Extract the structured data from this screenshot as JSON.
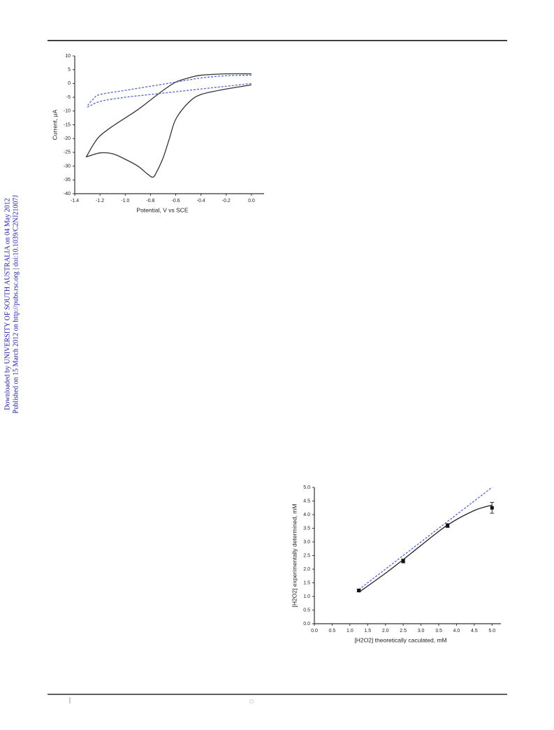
{
  "sidebar": {
    "line1": "Downloaded by UNIVERSITY OF SOUTH AUSTRALIA on 04 May 2012",
    "line2": "Published on 15 March 2012 on http://pubs.rsc.org | doi:10.1039/C2NJ21007J"
  },
  "chart_data": [
    {
      "type": "line",
      "x_label": "Potential, V vs SCE",
      "y_label": "Current, μA",
      "xlim": [
        -1.4,
        0.1
      ],
      "ylim": [
        -40,
        10
      ],
      "xticks": [
        -1.4,
        -1.2,
        {
          "value": -1,
          "label": "-1.0"
        },
        -0.8,
        -0.6,
        -0.4,
        -0.2,
        {
          "value": 0,
          "label": "0.0"
        }
      ],
      "yticks": [
        10,
        5,
        0,
        -5,
        -10,
        -15,
        -20,
        -25,
        -30,
        -35,
        -40
      ],
      "series": [
        {
          "color": "#333333",
          "dashed": false,
          "x": [
            0,
            -0.2,
            -0.4,
            -0.5,
            -0.6,
            -0.65,
            -0.7,
            -0.75,
            -0.78,
            -0.82,
            -0.9,
            -1.0,
            -1.1,
            -1.2,
            -1.3,
            -1.3,
            -1.25,
            -1.2,
            -1.1,
            -1.0,
            -0.9,
            -0.8,
            -0.7,
            -0.6,
            -0.5,
            -0.4,
            -0.2,
            0
          ],
          "values": [
            -0.5,
            -2,
            -4,
            -7,
            -13,
            -20,
            -27,
            -32,
            -34,
            -33,
            -30,
            -27.5,
            -25.5,
            -25.2,
            -26.5,
            -26,
            -22,
            -19,
            -15.5,
            -12.5,
            -9.5,
            -6,
            -2.5,
            0.5,
            2,
            3,
            3.5,
            3.5
          ]
        },
        {
          "color": "#5566cc",
          "dashed": true,
          "x": [
            0,
            -0.2,
            -0.4,
            -0.6,
            -0.8,
            -1.0,
            -1.2,
            -1.25,
            -1.3,
            -1.2,
            -1.0,
            -0.8,
            -0.6,
            -0.4,
            -0.2,
            0
          ],
          "values": [
            3,
            2.8,
            2,
            0.5,
            -1,
            -2.5,
            -4,
            -5.5,
            -8.5,
            -6.5,
            -5,
            -4,
            -3,
            -2,
            -1,
            0
          ]
        }
      ]
    },
    {
      "type": "scatter",
      "x_label": "[H2O2] theoretically caculated, mM",
      "y_label": "[H2O2] experimentally determined, mM",
      "xlim": [
        0,
        5.25
      ],
      "ylim": [
        0,
        5
      ],
      "xticks": [
        {
          "value": 0,
          "label": "0.0"
        },
        0.5,
        {
          "value": 1,
          "label": "1.0"
        },
        1.5,
        {
          "value": 2,
          "label": "2.0"
        },
        2.5,
        {
          "value": 3,
          "label": "3.0"
        },
        3.5,
        {
          "value": 4,
          "label": "4.0"
        },
        4.5,
        {
          "value": 5,
          "label": "5.0"
        }
      ],
      "yticks": [
        {
          "value": 0,
          "label": "0.0"
        },
        0.5,
        {
          "value": 1,
          "label": "1.0"
        },
        1.5,
        {
          "value": 2,
          "label": "2.0"
        },
        2.5,
        {
          "value": 3,
          "label": "3.0"
        },
        3.5,
        {
          "value": 4,
          "label": "4.0"
        },
        4.5,
        {
          "value": 5,
          "label": "5.0"
        }
      ],
      "series": [
        {
          "type": "line",
          "color": "#5566cc",
          "dashed": true,
          "x": [
            1.25,
            5
          ],
          "values": [
            1.25,
            5
          ]
        },
        {
          "type": "line",
          "color": "#222222",
          "dashed": false,
          "x": [
            1.25,
            2,
            2.5,
            3,
            3.75,
            4.5,
            5
          ],
          "values": [
            1.15,
            1.85,
            2.35,
            2.87,
            3.62,
            4.15,
            4.35
          ]
        },
        {
          "type": "scatter",
          "color": "#111111",
          "x": [
            1.25,
            2.5,
            3.75,
            5
          ],
          "values": [
            1.22,
            2.3,
            3.6,
            4.25
          ],
          "errors": [
            0.05,
            0.07,
            0.07,
            0.2
          ]
        }
      ]
    }
  ]
}
